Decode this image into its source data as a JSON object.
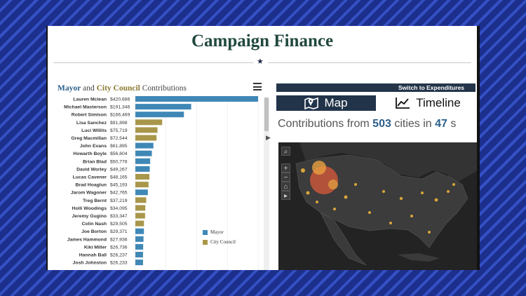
{
  "page": {
    "title": "Campaign Finance"
  },
  "chart": {
    "title_mayor": "Mayor",
    "title_and": "and",
    "title_council": "City Council",
    "title_contrib": "Contributions"
  },
  "chart_data": {
    "type": "bar",
    "title": "Mayor and City Council Contributions",
    "categories": [
      "Lauren Mclean",
      "Michael Masterson",
      "Robert Simison",
      "Lisa Sanchez",
      "Luci Willits",
      "Greg Macmillan",
      "John Evans",
      "Howarth Boyle",
      "Brian Blad",
      "David Worley",
      "Lucas Cavener",
      "Brad Hoaglun",
      "Jarom Wagoner",
      "Treg Bernt",
      "Holli Woodings",
      "Jeremy Gugino",
      "Colin Nash",
      "Joe Borton",
      "James Hammond",
      "Kiki Miller",
      "Hannah Ball",
      "Josh Johnston"
    ],
    "values": [
      420686,
      191346,
      166469,
      91898,
      75719,
      72544,
      61895,
      56604,
      50778,
      49267,
      48165,
      45193,
      42765,
      37219,
      34095,
      33347,
      29505,
      29371,
      27936,
      26736,
      26237,
      26233
    ],
    "value_labels": [
      "$420,686",
      "$191,346",
      "$166,469",
      "$91,898",
      "$75,719",
      "$72,544",
      "$61,895",
      "$56,604",
      "$50,778",
      "$49,267",
      "$48,165",
      "$45,193",
      "$42,765",
      "$37,219",
      "$34,095",
      "$33,347",
      "$29,505",
      "$29,371",
      "$27,936",
      "$26,736",
      "$26,237",
      "$26,233"
    ],
    "office": [
      "mayor",
      "mayor",
      "mayor",
      "council",
      "council",
      "council",
      "mayor",
      "mayor",
      "mayor",
      "mayor",
      "council",
      "council",
      "mayor",
      "council",
      "council",
      "council",
      "council",
      "mayor",
      "mayor",
      "mayor",
      "mayor",
      "mayor"
    ],
    "legend": [
      "Mayor",
      "City Council"
    ],
    "legend_placement": "bottom-right",
    "colors": {
      "mayor": "#3f88b6",
      "council": "#a8974a"
    },
    "grid": true,
    "xlim": [
      0,
      420686
    ]
  },
  "right": {
    "switch_label": "Switch to Expenditures",
    "map_tab": "Map",
    "timeline_tab": "Timeline",
    "sub_prefix": "Contributions from",
    "city_count": "503",
    "sub_mid": "cities in",
    "state_count": "47",
    "sub_suffix": "s",
    "map_controls": [
      "search-icon",
      "zoom-in",
      "zoom-out",
      "home-icon",
      "play-icon"
    ]
  },
  "colors": {
    "accent": "#2b5f8a",
    "title": "#21483f",
    "tab": "#22344a",
    "map_bg": "#232323",
    "dots": "#d9a53a"
  }
}
